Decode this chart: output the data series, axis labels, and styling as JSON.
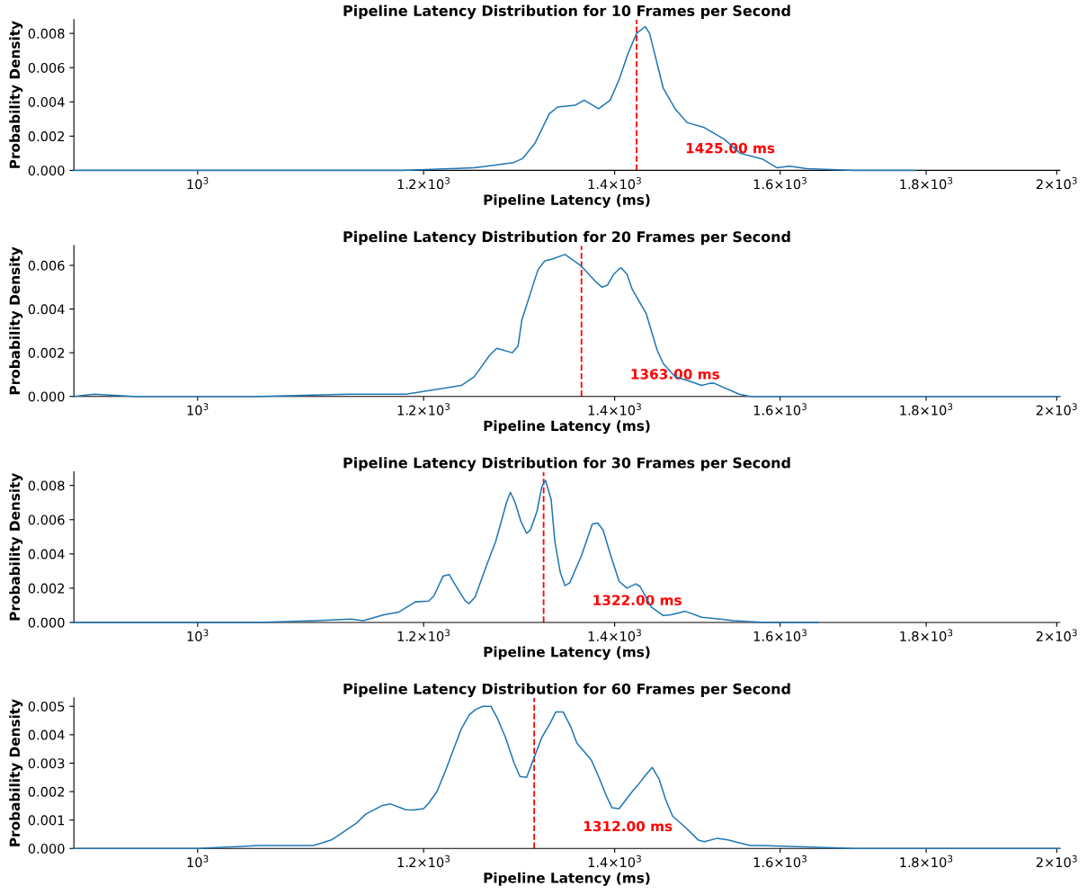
{
  "chart_data": [
    {
      "type": "line",
      "title": "Pipeline Latency Distribution for 10 Frames per Second",
      "xlabel": "Pipeline Latency (ms)",
      "ylabel": "Probability Density",
      "log": "x",
      "x": [
        905,
        1000,
        1100,
        1180,
        1225,
        1250,
        1270,
        1290,
        1300,
        1313,
        1328,
        1337,
        1356,
        1366,
        1382,
        1395,
        1405,
        1415,
        1425,
        1435,
        1440,
        1456,
        1470,
        1484,
        1505,
        1530,
        1549,
        1578,
        1596,
        1612,
        1635,
        1700,
        1785
      ],
      "series": [
        {
          "color": "#1f77b4",
          "values": [
            0,
            0,
            0,
            0,
            0.0001,
            0.00015,
            0.0003,
            0.00045,
            0.0007,
            0.0016,
            0.0033,
            0.0037,
            0.0038,
            0.0041,
            0.0036,
            0.0041,
            0.0053,
            0.0068,
            0.008,
            0.0084,
            0.008,
            0.0048,
            0.0036,
            0.0028,
            0.0025,
            0.0018,
            0.001,
            0.00065,
            0.00015,
            0.00025,
            0.0001,
            0,
            0
          ]
        }
      ],
      "xlim": [
        905,
        2005
      ],
      "xticks": [
        {
          "value": 1000,
          "label": "10$^{3}$"
        },
        {
          "value": 1200,
          "label": "1.2×10$^{3}$"
        },
        {
          "value": 1400,
          "label": "1.4×10$^{3}$"
        },
        {
          "value": 1600,
          "label": "1.6×10$^{3}$"
        },
        {
          "value": 1800,
          "label": "1.8×10$^{3}$"
        },
        {
          "value": 2000,
          "label": "2×10$^{3}$"
        }
      ],
      "ylim": [
        0,
        0.0088
      ],
      "yticks": [
        {
          "value": 0,
          "label": "0.000"
        },
        {
          "value": 0.002,
          "label": "0.002"
        },
        {
          "value": 0.004,
          "label": "0.004"
        },
        {
          "value": 0.006,
          "label": "0.006"
        },
        {
          "value": 0.008,
          "label": "0.008"
        }
      ],
      "ref_lines": [
        {
          "axis": "x",
          "value": 1425,
          "label": "1425.00 ms",
          "color": "#ff0000",
          "line_style": "dashed"
        }
      ],
      "grid": false
    },
    {
      "type": "line",
      "title": "Pipeline Latency Distribution for 20 Frames per Second",
      "xlabel": "Pipeline Latency (ms)",
      "ylabel": "Probability Density",
      "log": "x",
      "x": [
        905,
        920,
        950,
        1050,
        1130,
        1183,
        1237,
        1250,
        1266,
        1273,
        1289,
        1295,
        1299,
        1316,
        1323,
        1332,
        1345,
        1362,
        1380,
        1386,
        1392,
        1399,
        1407,
        1414,
        1420,
        1436,
        1449,
        1456,
        1470,
        1487,
        1502,
        1512,
        1517,
        1548,
        1562,
        1700,
        1940,
        2005
      ],
      "series": [
        {
          "color": "#1f77b4",
          "values": [
            0,
            0.0001,
            0,
            0,
            0.0001,
            0.0001,
            0.0005,
            0.0009,
            0.0019,
            0.0022,
            0.002,
            0.0023,
            0.0035,
            0.0058,
            0.0062,
            0.0063,
            0.0065,
            0.006,
            0.0052,
            0.005,
            0.0051,
            0.0056,
            0.0059,
            0.0056,
            0.0049,
            0.0038,
            0.0021,
            0.0015,
            0.0009,
            0.0007,
            0.0005,
            0.0006,
            0.0006,
            0.0001,
            0,
            0,
            0,
            0
          ]
        }
      ],
      "xlim": [
        905,
        2005
      ],
      "xticks": [
        {
          "value": 1000,
          "label": "10$^{3}$"
        },
        {
          "value": 1200,
          "label": "1.2×10$^{3}$"
        },
        {
          "value": 1400,
          "label": "1.4×10$^{3}$"
        },
        {
          "value": 1600,
          "label": "1.6×10$^{3}$"
        },
        {
          "value": 1800,
          "label": "1.8×10$^{3}$"
        },
        {
          "value": 2000,
          "label": "2×10$^{3}$"
        }
      ],
      "ylim": [
        0,
        0.0069
      ],
      "yticks": [
        {
          "value": 0,
          "label": "0.000"
        },
        {
          "value": 0.002,
          "label": "0.002"
        },
        {
          "value": 0.004,
          "label": "0.004"
        },
        {
          "value": 0.006,
          "label": "0.006"
        }
      ],
      "ref_lines": [
        {
          "axis": "x",
          "value": 1363,
          "label": "1363.00 ms",
          "color": "#ff0000",
          "line_style": "dashed"
        }
      ],
      "grid": false
    },
    {
      "type": "line",
      "title": "Pipeline Latency Distribution for 30 Frames per Second",
      "xlabel": "Pipeline Latency (ms)",
      "ylabel": "Probability Density",
      "log": "x",
      "x": [
        905,
        1050,
        1100,
        1132,
        1143,
        1162,
        1176,
        1192,
        1205,
        1210,
        1219,
        1225,
        1231,
        1241,
        1245,
        1251,
        1263,
        1272,
        1283,
        1287,
        1292,
        1298,
        1304,
        1308,
        1315,
        1320,
        1324,
        1330,
        1334,
        1340,
        1345,
        1350,
        1363,
        1375,
        1381,
        1387,
        1395,
        1405,
        1414,
        1424,
        1429,
        1442,
        1456,
        1465,
        1482,
        1502,
        1524,
        1541,
        1580,
        1650
      ],
      "series": [
        {
          "color": "#1f77b4",
          "values": [
            0,
            0,
            0.0001,
            0.0002,
            0.0001,
            0.00045,
            0.0006,
            0.0012,
            0.00125,
            0.00155,
            0.0027,
            0.0028,
            0.0022,
            0.00125,
            0.0011,
            0.0015,
            0.0034,
            0.00475,
            0.007,
            0.0076,
            0.007,
            0.0059,
            0.0052,
            0.0054,
            0.0065,
            0.0079,
            0.0083,
            0.0072,
            0.00475,
            0.0029,
            0.00215,
            0.0023,
            0.0039,
            0.00575,
            0.0058,
            0.0054,
            0.004,
            0.0024,
            0.002,
            0.00225,
            0.0021,
            0.0009,
            0.0004,
            0.00045,
            0.00065,
            0.0003,
            0.0002,
            0.0001,
            0,
            0
          ]
        }
      ],
      "xlim": [
        905,
        2005
      ],
      "xticks": [
        {
          "value": 1000,
          "label": "10$^{3}$"
        },
        {
          "value": 1200,
          "label": "1.2×10$^{3}$"
        },
        {
          "value": 1400,
          "label": "1.4×10$^{3}$"
        },
        {
          "value": 1600,
          "label": "1.6×10$^{3}$"
        },
        {
          "value": 1800,
          "label": "1.8×10$^{3}$"
        },
        {
          "value": 2000,
          "label": "2×10$^{3}$"
        }
      ],
      "ylim": [
        0,
        0.0088
      ],
      "yticks": [
        {
          "value": 0,
          "label": "0.000"
        },
        {
          "value": 0.002,
          "label": "0.002"
        },
        {
          "value": 0.004,
          "label": "0.004"
        },
        {
          "value": 0.006,
          "label": "0.006"
        },
        {
          "value": 0.008,
          "label": "0.008"
        }
      ],
      "ref_lines": [
        {
          "axis": "x",
          "value": 1322,
          "label": "1322.00 ms",
          "color": "#ff0000",
          "line_style": "dashed"
        }
      ],
      "grid": false
    },
    {
      "type": "line",
      "title": "Pipeline Latency Distribution for 60 Frames per Second",
      "xlabel": "Pipeline Latency (ms)",
      "ylabel": "Probability Density",
      "log": "x",
      "x": [
        905,
        1000,
        1050,
        1070,
        1098,
        1114,
        1137,
        1145,
        1160,
        1168,
        1183,
        1190,
        1200,
        1205,
        1213,
        1221,
        1237,
        1245,
        1252,
        1259,
        1267,
        1274,
        1282,
        1291,
        1297,
        1304,
        1312,
        1320,
        1329,
        1335,
        1343,
        1351,
        1358,
        1367,
        1374,
        1381,
        1390,
        1397,
        1405,
        1420,
        1427,
        1436,
        1443,
        1451,
        1459,
        1467,
        1483,
        1498,
        1505,
        1521,
        1534,
        1548,
        1562,
        1577,
        1700,
        2005
      ],
      "series": [
        {
          "color": "#1f77b4",
          "values": [
            0,
            0,
            0.0001,
            0.0001,
            0.0001,
            0.0003,
            0.0009,
            0.0012,
            0.0015,
            0.00157,
            0.00136,
            0.00135,
            0.0014,
            0.0016,
            0.002,
            0.0027,
            0.0042,
            0.0047,
            0.0049,
            0.005,
            0.005,
            0.00455,
            0.0039,
            0.003,
            0.00253,
            0.0025,
            0.0032,
            0.0039,
            0.0044,
            0.0048,
            0.0048,
            0.0043,
            0.0037,
            0.00337,
            0.0031,
            0.0026,
            0.0019,
            0.00143,
            0.0014,
            0.002,
            0.00225,
            0.0026,
            0.00285,
            0.00245,
            0.0017,
            0.00114,
            0.00072,
            0.00029,
            0.00024,
            0.00036,
            0.0003,
            0.0002,
            0.0001,
            0.0001,
            0,
            0
          ]
        }
      ],
      "xlim": [
        905,
        2005
      ],
      "xticks": [
        {
          "value": 1000,
          "label": "10$^{3}$"
        },
        {
          "value": 1200,
          "label": "1.2×10$^{3}$"
        },
        {
          "value": 1400,
          "label": "1.4×10$^{3}$"
        },
        {
          "value": 1600,
          "label": "1.6×10$^{3}$"
        },
        {
          "value": 1800,
          "label": "1.8×10$^{3}$"
        },
        {
          "value": 2000,
          "label": "2×10$^{3}$"
        }
      ],
      "ylim": [
        0,
        0.0053
      ],
      "yticks": [
        {
          "value": 0,
          "label": "0.000"
        },
        {
          "value": 0.001,
          "label": "0.001"
        },
        {
          "value": 0.002,
          "label": "0.002"
        },
        {
          "value": 0.003,
          "label": "0.003"
        },
        {
          "value": 0.004,
          "label": "0.004"
        },
        {
          "value": 0.005,
          "label": "0.005"
        }
      ],
      "ref_lines": [
        {
          "axis": "x",
          "value": 1312,
          "label": "1312.00 ms",
          "color": "#ff0000",
          "line_style": "dashed"
        }
      ],
      "grid": false
    }
  ]
}
